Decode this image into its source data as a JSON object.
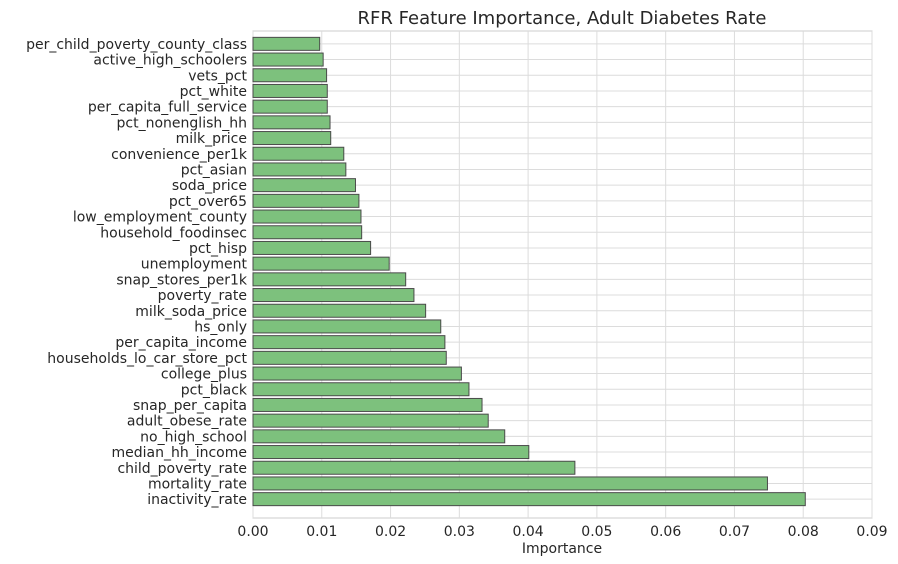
{
  "chart_data": {
    "type": "bar",
    "orientation": "horizontal",
    "title": "RFR Feature Importance, Adult Diabetes Rate",
    "xlabel": "Importance",
    "ylabel": "",
    "xlim": [
      0.0,
      0.09
    ],
    "xticks": [
      "0.00",
      "0.01",
      "0.02",
      "0.03",
      "0.04",
      "0.05",
      "0.06",
      "0.07",
      "0.08",
      "0.09"
    ],
    "grid": true,
    "bar_color": "#7dc17d",
    "bar_edge_color": "#4a4a4a",
    "categories": [
      "inactivity_rate",
      "mortality_rate",
      "child_poverty_rate",
      "median_hh_income",
      "no_high_school",
      "adult_obese_rate",
      "snap_per_capita",
      "pct_black",
      "college_plus",
      "households_lo_car_store_pct",
      "per_capita_income",
      "hs_only",
      "milk_soda_price",
      "poverty_rate",
      "snap_stores_per1k",
      "unemployment",
      "pct_hisp",
      "household_foodinsec",
      "low_employment_county",
      "pct_over65",
      "soda_price",
      "pct_asian",
      "convenience_per1k",
      "milk_price",
      "pct_nonenglish_hh",
      "per_capita_full_service",
      "pct_white",
      "vets_pct",
      "active_high_schoolers",
      "per_child_poverty_county_class"
    ],
    "values": [
      0.0803,
      0.0748,
      0.0468,
      0.0401,
      0.0366,
      0.0342,
      0.0333,
      0.0314,
      0.0303,
      0.0281,
      0.0279,
      0.0273,
      0.0251,
      0.0234,
      0.0222,
      0.0198,
      0.0171,
      0.0158,
      0.0157,
      0.0154,
      0.0149,
      0.0135,
      0.0132,
      0.0113,
      0.0112,
      0.0108,
      0.0108,
      0.0107,
      0.0102,
      0.0097
    ]
  }
}
